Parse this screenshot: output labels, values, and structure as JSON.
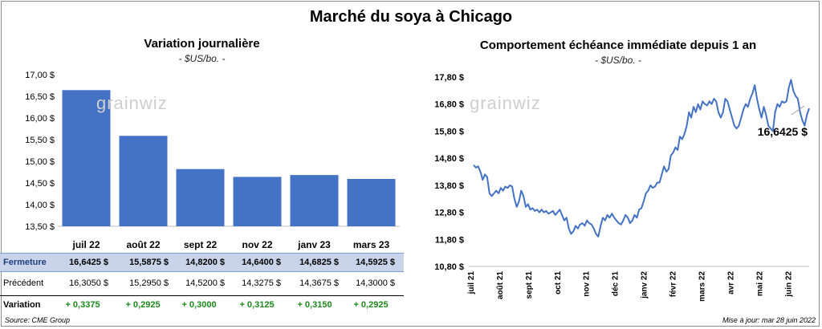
{
  "title": "Marché du soya à Chicago",
  "left": {
    "title": "Variation journalière",
    "unit": "- $US/bo. -",
    "logo": "grainwiz"
  },
  "right": {
    "title": "Comportement échéance immédiate depuis 1 an",
    "unit": "- $US/bo. -",
    "logo": "grainwiz",
    "last_label": "16,6425 $"
  },
  "table": {
    "row_labels": [
      "Fermeture",
      "Précédent",
      "Variation"
    ],
    "fermeture": [
      "16,6425  $",
      "15,5875  $",
      "14,8200  $",
      "14,6400  $",
      "14,6825  $",
      "14,5925  $"
    ],
    "precedent": [
      "16,3050  $",
      "15,2950  $",
      "14,5200  $",
      "14,3275  $",
      "14,3675  $",
      "14,3000  $"
    ],
    "variation": [
      "+ 0,3375",
      "+ 0,2925",
      "+ 0,3000",
      "+ 0,3125",
      "+ 0,3150",
      "+ 0,2925"
    ]
  },
  "source": "Source: CME Group",
  "update": "Mise à jour: mar 28 juin 2022",
  "colors": {
    "bar": "#4472c4",
    "line": "#4472c4",
    "green": "#1a8a1a",
    "table_header": "#c9d4ea"
  },
  "chart_data": [
    {
      "type": "bar",
      "categories": [
        "juil 22",
        "août 22",
        "sept 22",
        "nov 22",
        "janv 23",
        "mars 23"
      ],
      "values": [
        16.6425,
        15.5875,
        14.82,
        14.64,
        14.6825,
        14.5925
      ],
      "ylim": [
        13.5,
        17.0
      ],
      "yticks": [
        "13,50 $",
        "14,00 $",
        "14,50 $",
        "15,00 $",
        "15,50 $",
        "16,00 $",
        "16,50 $",
        "17,00 $"
      ],
      "grid": false
    },
    {
      "type": "line",
      "xticks": [
        "juil 21",
        "août 21",
        "sept 21",
        "oct 21",
        "nov 21",
        "déc 21",
        "janv 22",
        "févr 22",
        "mars 22",
        "avr 22",
        "mai 22",
        "juin 22"
      ],
      "yticks": [
        "10,80 $",
        "11,80 $",
        "12,80 $",
        "13,80 $",
        "14,80 $",
        "15,80 $",
        "16,80 $",
        "17,80 $"
      ],
      "ylim": [
        10.8,
        17.8
      ],
      "grid": false,
      "series": [
        {
          "values": [
            14.55,
            14.45,
            14.5,
            14.3,
            14.0,
            14.2,
            14.1,
            13.5,
            13.4,
            13.5,
            13.6,
            13.5,
            13.7,
            13.6,
            13.75,
            13.7,
            13.8,
            13.75,
            13.3,
            13.0,
            13.2,
            13.6,
            13.4,
            13.0,
            13.1,
            12.9,
            12.95,
            12.85,
            12.9,
            12.8,
            12.9,
            12.8,
            12.85,
            12.75,
            12.8,
            12.85,
            12.7,
            12.8,
            12.9,
            12.7,
            12.5,
            12.6,
            12.2,
            12.0,
            12.1,
            12.3,
            12.2,
            12.35,
            12.4,
            12.3,
            12.5,
            12.4,
            12.35,
            12.2,
            12.0,
            11.9,
            12.3,
            12.6,
            12.5,
            12.7,
            12.6,
            12.75,
            12.6,
            12.5,
            12.4,
            12.35,
            12.5,
            12.7,
            12.6,
            12.4,
            12.5,
            12.7,
            12.6,
            12.9,
            12.95,
            13.2,
            13.5,
            13.6,
            13.8,
            13.7,
            13.75,
            13.9,
            13.9,
            14.2,
            14.5,
            14.3,
            14.4,
            14.9,
            15.0,
            15.2,
            15.1,
            15.6,
            15.5,
            15.7,
            16.0,
            16.5,
            16.3,
            16.7,
            16.5,
            16.8,
            16.6,
            16.9,
            16.8,
            16.75,
            16.9,
            16.8,
            17.0,
            16.9,
            16.5,
            16.3,
            16.5,
            17.0,
            16.9,
            16.6,
            16.3,
            16.0,
            15.9,
            16.0,
            16.3,
            16.6,
            16.8,
            16.7,
            17.0,
            17.2,
            17.5,
            17.0,
            16.6,
            16.3,
            16.7,
            16.4,
            16.0,
            15.9,
            15.8,
            16.5,
            16.8,
            16.7,
            16.9,
            16.85,
            16.9,
            17.4,
            17.7,
            17.3,
            17.1,
            17.0,
            16.5,
            16.2,
            16.0,
            16.4,
            16.6425
          ]
        }
      ]
    }
  ]
}
